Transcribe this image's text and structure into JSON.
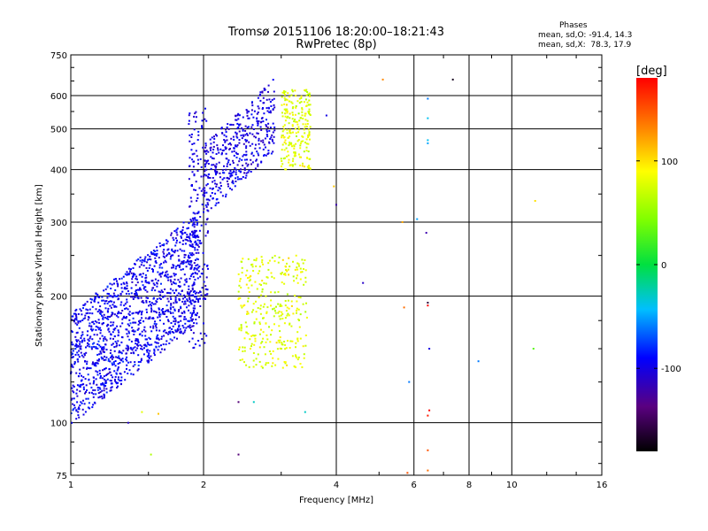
{
  "header": {
    "title_line1": "Tromsø 20151106 18:20:00–18:21:43",
    "title_line2": "RwPretec (8p)"
  },
  "stats": {
    "heading": "Phases",
    "line_o": "mean, sd,O: -91.4, 14.3",
    "line_x": "mean, sd,X:  78.3, 17.9"
  },
  "chart_data": {
    "type": "scatter",
    "xlabel": "Frequency [MHz]",
    "ylabel": "Stationary phase Virtual Height [km]",
    "x_scale": "log",
    "y_scale": "log",
    "xlim": [
      1,
      16
    ],
    "ylim": [
      75,
      750
    ],
    "x_ticks": [
      1,
      2,
      4,
      6,
      8,
      10,
      16
    ],
    "x_tick_labels": [
      "1",
      "2",
      "4",
      "6",
      "8",
      "10",
      "16"
    ],
    "y_ticks": [
      75,
      100,
      200,
      300,
      400,
      500,
      600,
      750
    ],
    "y_tick_labels": [
      "75",
      "100",
      "200",
      "300",
      "400",
      "500",
      "600",
      "750"
    ],
    "grid": true,
    "colorbar": {
      "label": "[deg]",
      "range": [
        -180,
        180
      ],
      "ticks": [
        100,
        0,
        -100
      ],
      "tick_labels": [
        "100",
        "0",
        "-100"
      ]
    },
    "clusters": [
      {
        "description": "O-mode F-region trace low",
        "phase_mean": -95,
        "phase_sd": 15,
        "f_range": [
          1.0,
          1.95
        ],
        "h_range": [
          115,
          320
        ],
        "count": 1400,
        "height_trend": "rising"
      },
      {
        "description": "O-mode vertical near 2 MHz",
        "phase_mean": -100,
        "phase_sd": 12,
        "f_range": [
          1.85,
          2.05
        ],
        "h_range": [
          150,
          560
        ],
        "count": 180,
        "height_trend": "flat"
      },
      {
        "description": "O-mode upper trace",
        "phase_mean": -100,
        "phase_sd": 15,
        "f_range": [
          2.0,
          2.9
        ],
        "h_range": [
          340,
          660
        ],
        "count": 420,
        "height_trend": "rising"
      },
      {
        "description": "X-mode lower trace",
        "phase_mean": 80,
        "phase_sd": 18,
        "f_range": [
          2.4,
          3.45
        ],
        "h_range": [
          135,
          250
        ],
        "count": 320,
        "height_trend": "flat"
      },
      {
        "description": "X-mode upper trace",
        "phase_mean": 80,
        "phase_sd": 18,
        "f_range": [
          3.0,
          3.5
        ],
        "h_range": [
          400,
          620
        ],
        "count": 220,
        "height_trend": "flat"
      }
    ],
    "outliers": [
      {
        "f": 1.35,
        "h": 100,
        "phase": -110
      },
      {
        "f": 1.45,
        "h": 106,
        "phase": 80
      },
      {
        "f": 1.58,
        "h": 105,
        "phase": 110
      },
      {
        "f": 1.52,
        "h": 84,
        "phase": 60
      },
      {
        "f": 2.4,
        "h": 84,
        "phase": -140
      },
      {
        "f": 2.4,
        "h": 112,
        "phase": -140
      },
      {
        "f": 2.6,
        "h": 112,
        "phase": -30
      },
      {
        "f": 3.8,
        "h": 538,
        "phase": -100
      },
      {
        "f": 3.95,
        "h": 365,
        "phase": 110
      },
      {
        "f": 4.0,
        "h": 330,
        "phase": -120
      },
      {
        "f": 3.4,
        "h": 106,
        "phase": -30
      },
      {
        "f": 4.6,
        "h": 215,
        "phase": -110
      },
      {
        "f": 5.1,
        "h": 655,
        "phase": 130
      },
      {
        "f": 5.65,
        "h": 300,
        "phase": 120
      },
      {
        "f": 5.7,
        "h": 188,
        "phase": 140
      },
      {
        "f": 5.85,
        "h": 125,
        "phase": -60
      },
      {
        "f": 5.8,
        "h": 76,
        "phase": 150
      },
      {
        "f": 6.1,
        "h": 305,
        "phase": -50
      },
      {
        "f": 6.45,
        "h": 590,
        "phase": -60
      },
      {
        "f": 6.45,
        "h": 530,
        "phase": -40
      },
      {
        "f": 6.45,
        "h": 470,
        "phase": -40
      },
      {
        "f": 6.45,
        "h": 462,
        "phase": -50
      },
      {
        "f": 6.4,
        "h": 283,
        "phase": -120
      },
      {
        "f": 6.45,
        "h": 193,
        "phase": -160
      },
      {
        "f": 6.45,
        "h": 190,
        "phase": 180
      },
      {
        "f": 6.5,
        "h": 150,
        "phase": -100
      },
      {
        "f": 6.5,
        "h": 107,
        "phase": 180
      },
      {
        "f": 6.45,
        "h": 104,
        "phase": 170
      },
      {
        "f": 6.45,
        "h": 86,
        "phase": 150
      },
      {
        "f": 6.45,
        "h": 77,
        "phase": 140
      },
      {
        "f": 7.35,
        "h": 655,
        "phase": -170
      },
      {
        "f": 8.4,
        "h": 140,
        "phase": -60
      },
      {
        "f": 11.3,
        "h": 337,
        "phase": 100
      },
      {
        "f": 11.2,
        "h": 150,
        "phase": 30
      }
    ]
  }
}
